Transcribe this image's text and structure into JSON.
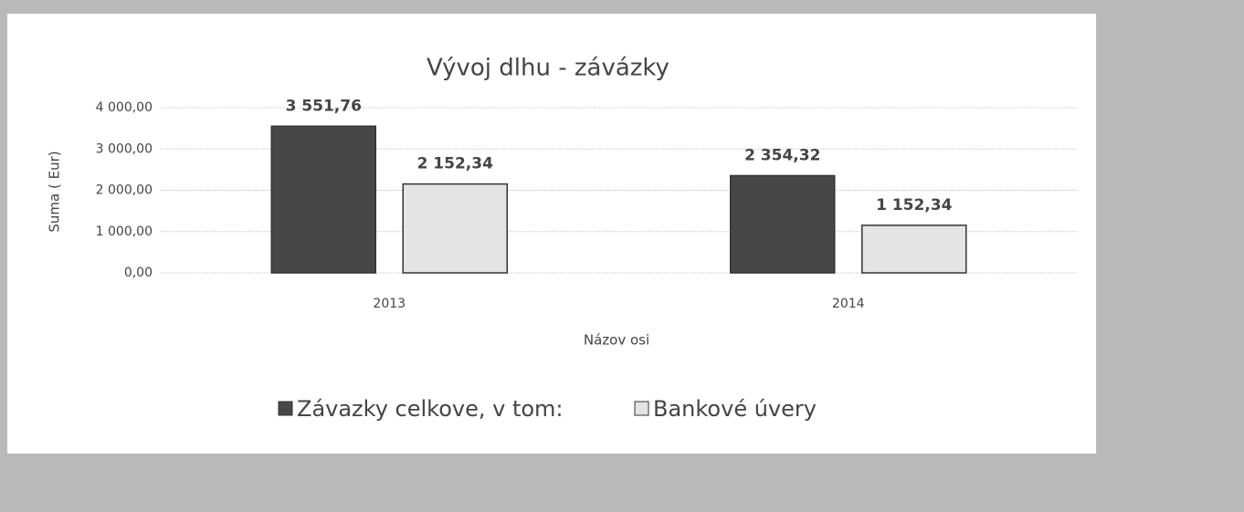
{
  "chart_data": {
    "type": "bar",
    "title": "Vývoj dlhu - závázky",
    "x_label": "Názov osi",
    "y_label": "Suma ( Eur)",
    "categories": [
      "2013",
      "2014"
    ],
    "series": [
      {
        "name": "Závazky celkove, v tom:",
        "color": "#474747",
        "values": [
          3551.76,
          2354.32
        ],
        "value_labels": [
          "3 551,76",
          "2 354,32"
        ]
      },
      {
        "name": "Bankové úvery",
        "color": "#e4e4e4",
        "values": [
          2152.34,
          1152.34
        ],
        "value_labels": [
          "2 152,34",
          "1 152,34"
        ]
      }
    ],
    "ylim": [
      0,
      4000
    ],
    "yticks": [
      {
        "value": 0,
        "label": "0,00"
      },
      {
        "value": 1000,
        "label": "1 000,00"
      },
      {
        "value": 2000,
        "label": "2 000,00"
      },
      {
        "value": 3000,
        "label": "3 000,00"
      },
      {
        "value": 4000,
        "label": "4 000,00"
      }
    ],
    "grid": true,
    "legend": "bottom"
  }
}
